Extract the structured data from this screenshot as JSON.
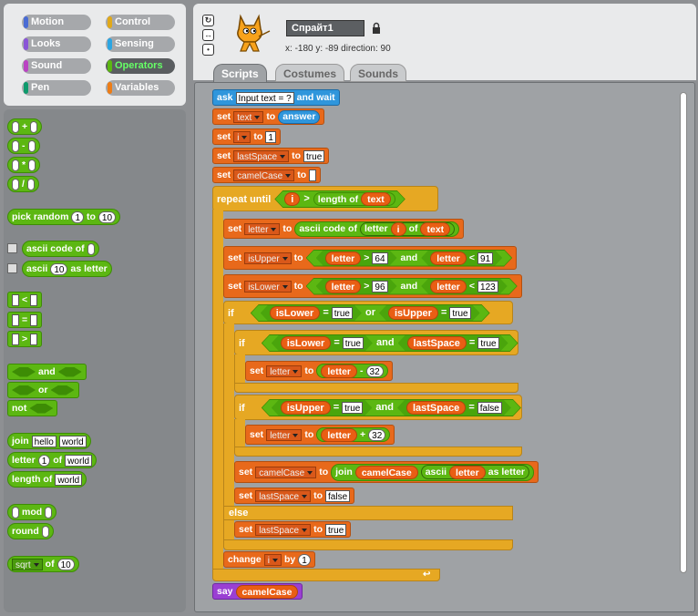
{
  "categories": [
    {
      "label": "Motion",
      "color": "#4a6cd4"
    },
    {
      "label": "Control",
      "color": "#e1a91a"
    },
    {
      "label": "Looks",
      "color": "#8a55d7"
    },
    {
      "label": "Sensing",
      "color": "#2ca5e2"
    },
    {
      "label": "Sound",
      "color": "#bb42c3"
    },
    {
      "label": "Operators",
      "color": "#5cb712"
    },
    {
      "label": "Pen",
      "color": "#0e9a6c"
    },
    {
      "label": "Variables",
      "color": "#ee7d16"
    }
  ],
  "selected_category": "Operators",
  "sprite": {
    "name": "Спрайт1",
    "x_label": "x:",
    "x": "-180",
    "y_label": "y:",
    "y": "-89",
    "dir_label": "direction:",
    "direction": "90"
  },
  "tabs": [
    "Scripts",
    "Costumes",
    "Sounds"
  ],
  "palette": {
    "plus": "+",
    "minus": "-",
    "times": "*",
    "div": "/",
    "pick_random": "pick random",
    "pick_to": "to",
    "pick_a": "1",
    "pick_b": "10",
    "ascii_code_of": "ascii code of",
    "ascii_letter_pre": "ascii",
    "ascii_letter_val": "10",
    "ascii_letter_post": "as letter",
    "lt": "<",
    "eq": "=",
    "gt": ">",
    "and": "and",
    "or": "or",
    "not": "not",
    "join": "join",
    "join_a": "hello",
    "join_b": "world",
    "letter": "letter",
    "letter_n": "1",
    "letter_of": "of",
    "letter_world": "world",
    "length_of": "length of",
    "length_world": "world",
    "mod": "mod",
    "round": "round",
    "sqrt": "sqrt",
    "sqrt_of": "of",
    "sqrt_val": "10"
  },
  "script": {
    "ask": "ask",
    "ask_text": "Input text = ?",
    "and_wait": "and wait",
    "set": "set",
    "to": "to",
    "answer": "answer",
    "v_text": "text",
    "v_i": "i",
    "v_lastSpace": "lastSpace",
    "v_camelCase": "camelCase",
    "v_letter": "letter",
    "v_isUpper": "isUpper",
    "v_isLower": "isLower",
    "one": "1",
    "true": "true",
    "false": "false",
    "repeat_until": "repeat until",
    "gt": ">",
    "lt": "<",
    "eq": "=",
    "plus": "+",
    "minus": "-",
    "length_of": "length of",
    "ascii_code_of": "ascii code of",
    "letter": "letter",
    "of": "of",
    "n64": "64",
    "n91": "91",
    "n96": "96",
    "n123": "123",
    "n32": "32",
    "and": "and",
    "or": "or",
    "if": "if",
    "else": "else",
    "join": "join",
    "ascii": "ascii",
    "as_letter": "as letter",
    "change": "change",
    "by": "by",
    "say": "say"
  }
}
